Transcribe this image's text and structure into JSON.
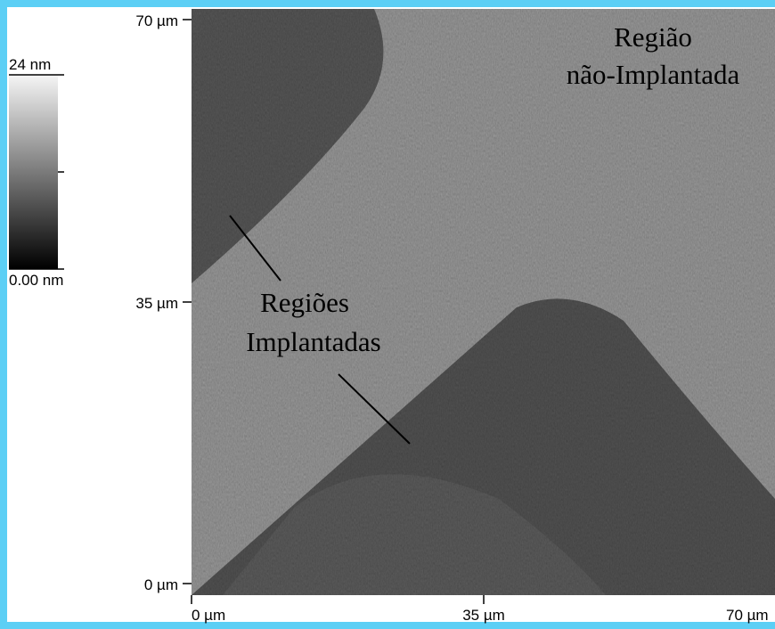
{
  "colorbar": {
    "max_label": "24 nm",
    "min_label": "0.00 nm"
  },
  "y_axis": [
    "70 µm",
    "35 µm",
    "0 µm"
  ],
  "x_axis": [
    "0 µm",
    "35 µm",
    "70 µm"
  ],
  "annotations": {
    "non_implanted": [
      "Região",
      "não-Implantada"
    ],
    "implanted": [
      "Regiões",
      "Implantadas"
    ]
  }
}
